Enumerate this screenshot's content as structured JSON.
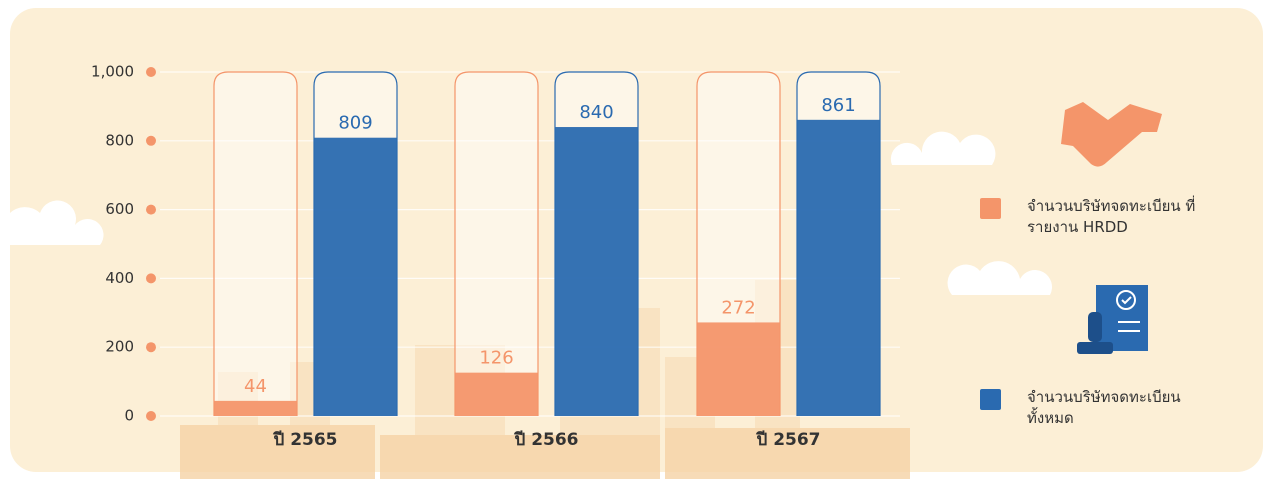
{
  "chart_data": {
    "type": "bar",
    "categories": [
      "ปี 2565",
      "ปี 2566",
      "ปี 2567"
    ],
    "series": [
      {
        "name": "จำนวนบริษัทจดทะเบียน ที่รายงาน HRDD",
        "color": "#f4956a",
        "values": [
          44,
          126,
          272
        ]
      },
      {
        "name": "จำนวนบริษัทจดทะเบียน ทั้งหมด",
        "color": "#2a6ab0",
        "values": [
          809,
          840,
          861
        ]
      }
    ],
    "ylim": [
      0,
      1000
    ],
    "yticks": [
      0,
      200,
      400,
      600,
      800,
      {
        "value": 1000,
        "label": "1,000"
      }
    ],
    "grid": true
  }
}
